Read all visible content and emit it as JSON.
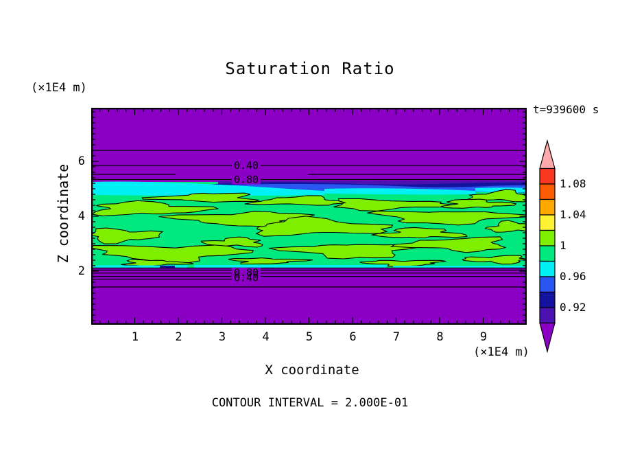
{
  "title": "Saturation Ratio",
  "time_label": "t=939600 s",
  "footer": {
    "contour_note": "CONTOUR INTERVAL = 2.000E-01"
  },
  "axes": {
    "x": {
      "label": "X coordinate",
      "unit": "(×1E4 m)",
      "tick_labels": [
        "1",
        "2",
        "3",
        "4",
        "5",
        "6",
        "7",
        "8",
        "9"
      ]
    },
    "z": {
      "label": "Z coordinate",
      "unit": "(×1E4 m)",
      "tick_labels": [
        "6",
        "4",
        "2"
      ]
    }
  },
  "colorbar": {
    "tick_labels": [
      "1.08",
      "1.04",
      "1",
      "0.96",
      "0.92"
    ]
  },
  "contour_labels": {
    "upper": [
      "0.40",
      "0.80"
    ],
    "lower": [
      "0.80",
      "0.40"
    ]
  },
  "chart_data": {
    "type": "heatmap",
    "title": "Saturation Ratio",
    "xlabel": "X coordinate",
    "ylabel": "Z coordinate",
    "x_unit": "(×1E4 m)",
    "z_unit": "(×1E4 m)",
    "xlim": [
      0,
      10
    ],
    "zlim": [
      0,
      8
    ],
    "x_ticks": [
      1,
      2,
      3,
      4,
      5,
      6,
      7,
      8,
      9
    ],
    "z_ticks": [
      2,
      4,
      6
    ],
    "x_minor_tick_step": 0.2,
    "z_minor_tick_step": 0.2,
    "time_seconds": 939600,
    "contour_interval": 0.2,
    "labeled_line_contours": [
      0.4,
      0.8
    ],
    "fill_levels": [
      0.9,
      0.92,
      0.94,
      0.96,
      0.98,
      1.0,
      1.02,
      1.04,
      1.06,
      1.08,
      1.1
    ],
    "fill_colors": [
      "#8C00C6",
      "#4B12B0",
      "#1313A0",
      "#2B55F0",
      "#00F0F5",
      "#00E97E",
      "#7FEF00",
      "#FFF133",
      "#FFA800",
      "#FB5C00",
      "#F93822",
      "#FFAAAA"
    ],
    "colorbar_boundary_labels": [
      1.08,
      1.04,
      1.0,
      0.96,
      0.92
    ],
    "grid": false,
    "field_structure": [
      {
        "region": "z > 5.3 (x1E4 m)",
        "value": "saturation ratio < 0.9 (purple); line contours 0.8, 0.6, 0.4, 0.2 at z ≈ 5.3, 5.5, 5.9, 6.4"
      },
      {
        "region": "5.0 < z < 5.3",
        "value": "stratified transition layer 0.90-0.98: blue-violet/navy/blue streaks, cyan band strongest at x < 3.5"
      },
      {
        "region": "2.1 < z < 5.0",
        "value": "mottled band ≈ 0.98-1.02: elongated horizontal patches of 1.00-1.02 (chartreuse) in 0.98-1.00 (green) background; 1.0 contour outlines patches"
      },
      {
        "region": "z ≈ 2.0-2.1",
        "value": "thin 0.96-0.98 cyan layer with small navy pocket near x ≈ 1.8"
      },
      {
        "region": "z < 2.0",
        "value": "saturation ratio < 0.9 (purple); line contours 0.8, 0.6, 0.4, 0.2 at z ≈ 1.95, 1.85, 1.7, 1.4"
      }
    ]
  }
}
